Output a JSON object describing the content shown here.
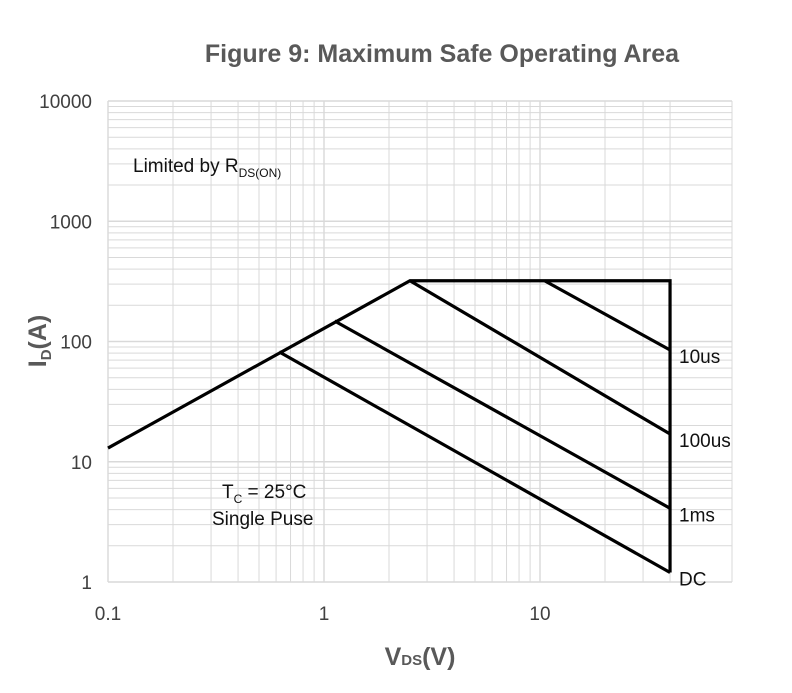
{
  "chart_data": {
    "type": "line",
    "title": "Figure 9: Maximum Safe Operating Area",
    "xlabel": {
      "main": "V",
      "sub": "DS",
      "suffix": "(V)"
    },
    "ylabel": {
      "main": "I",
      "sub": "D",
      "suffix": "(A)"
    },
    "xscale": "log",
    "yscale": "log",
    "xlim": [
      0.1,
      40
    ],
    "ylim": [
      1,
      10000
    ],
    "xticks": [
      {
        "value": 0.1,
        "label": "0.1"
      },
      {
        "value": 1,
        "label": "1"
      },
      {
        "value": 10,
        "label": "10"
      }
    ],
    "yticks": [
      {
        "value": 1,
        "label": "1"
      },
      {
        "value": 10,
        "label": "10"
      },
      {
        "value": 100,
        "label": "100"
      },
      {
        "value": 1000,
        "label": "1000"
      },
      {
        "value": 10000,
        "label": "10000"
      }
    ],
    "grid": true,
    "annotations": {
      "rds": {
        "main": "Limited by R",
        "sub": "DS(ON)"
      },
      "tc": {
        "main": "T",
        "sub": "C",
        "suffix": " = 25°C"
      },
      "pulse": "Single Puse"
    },
    "boundary": [
      {
        "x": 0.1,
        "y": 13
      },
      {
        "x": 2.5,
        "y": 320
      },
      {
        "x": 40,
        "y": 320
      },
      {
        "x": 40,
        "y": 1.2
      }
    ],
    "series": [
      {
        "name": "10us",
        "points": [
          {
            "x": 10.5,
            "y": 320
          },
          {
            "x": 40,
            "y": 85
          }
        ]
      },
      {
        "name": "100us",
        "points": [
          {
            "x": 2.5,
            "y": 320
          },
          {
            "x": 40,
            "y": 17
          }
        ]
      },
      {
        "name": "1ms",
        "points": [
          {
            "x": 1.12,
            "y": 148
          },
          {
            "x": 40,
            "y": 4.1
          }
        ]
      },
      {
        "name": "DC",
        "points": [
          {
            "x": 0.62,
            "y": 82
          },
          {
            "x": 40,
            "y": 1.2
          }
        ]
      }
    ],
    "colors": {
      "grid": "#d9d9d9",
      "line": "#000000",
      "axis_text": "#595959"
    }
  }
}
